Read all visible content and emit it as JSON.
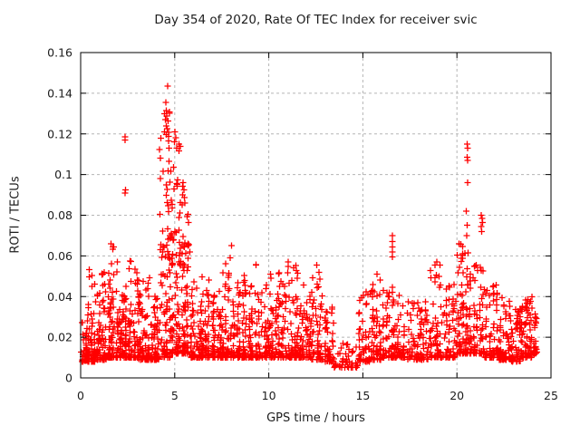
{
  "window": {
    "background": "#ffffff",
    "foreground": "#1c1c1c"
  },
  "chart_data": {
    "type": "scatter",
    "title": "Day 354 of 2020, Rate Of TEC Index for receiver svic",
    "xlabel": "GPS time / hours",
    "ylabel": "ROTI / TECUs",
    "xlim": [
      0,
      25
    ],
    "ylim": [
      0,
      0.16
    ],
    "xticks": [
      0,
      5,
      10,
      15,
      20,
      25
    ],
    "xtick_labels": [
      "0",
      "5",
      "10",
      "15",
      "20",
      "25"
    ],
    "yticks": [
      0,
      0.02,
      0.04,
      0.06,
      0.08,
      0.1,
      0.12,
      0.14,
      0.16
    ],
    "ytick_labels": [
      "0",
      "0.02",
      "0.04",
      "0.06",
      "0.08",
      "0.1",
      "0.12",
      "0.14",
      "0.16"
    ],
    "grid": {
      "shown": true,
      "style": "dashed",
      "color": "#b5b5b5"
    },
    "axis_color": "#000000",
    "legend": "none",
    "series": [
      {
        "name": "ROTI",
        "marker": {
          "glyph": "plus",
          "color": "#ff0000",
          "size": 7
        },
        "seed": 1970,
        "x_extent": [
          0,
          24.3
        ],
        "band_format": [
          "x_start",
          "x_end",
          "n_points",
          "y_min",
          "y_max",
          "decay_exponent"
        ],
        "band": [
          [
            0.0,
            0.35,
            40,
            0.008,
            0.03,
            2.2
          ],
          [
            0.35,
            0.8,
            60,
            0.008,
            0.054,
            2.8
          ],
          [
            0.8,
            1.4,
            80,
            0.009,
            0.052,
            2.6
          ],
          [
            1.4,
            2.0,
            85,
            0.01,
            0.066,
            2.8
          ],
          [
            2.0,
            2.5,
            70,
            0.01,
            0.048,
            2.6
          ],
          [
            2.5,
            3.1,
            75,
            0.01,
            0.058,
            2.7
          ],
          [
            3.1,
            3.7,
            70,
            0.009,
            0.05,
            2.6
          ],
          [
            3.7,
            4.2,
            60,
            0.009,
            0.044,
            2.5
          ],
          [
            4.2,
            4.8,
            55,
            0.01,
            0.06,
            2.0
          ],
          [
            4.2,
            4.8,
            42,
            0.058,
            0.132,
            1.5
          ],
          [
            4.8,
            5.3,
            55,
            0.012,
            0.058,
            2.0
          ],
          [
            4.8,
            5.3,
            38,
            0.055,
            0.12,
            1.6
          ],
          [
            5.3,
            5.8,
            60,
            0.012,
            0.062,
            2.2
          ],
          [
            5.3,
            5.8,
            22,
            0.055,
            0.095,
            1.5
          ],
          [
            5.8,
            6.4,
            65,
            0.01,
            0.048,
            2.5
          ],
          [
            6.4,
            6.9,
            60,
            0.01,
            0.05,
            2.5
          ],
          [
            6.9,
            7.5,
            65,
            0.01,
            0.044,
            2.5
          ],
          [
            7.5,
            8.1,
            70,
            0.01,
            0.062,
            2.8
          ],
          [
            8.1,
            8.7,
            65,
            0.01,
            0.048,
            2.6
          ],
          [
            8.7,
            9.4,
            70,
            0.01,
            0.056,
            2.7
          ],
          [
            9.4,
            10.1,
            70,
            0.01,
            0.05,
            2.6
          ],
          [
            10.1,
            10.8,
            75,
            0.01,
            0.052,
            2.6
          ],
          [
            10.8,
            11.6,
            80,
            0.01,
            0.056,
            2.7
          ],
          [
            11.6,
            12.3,
            70,
            0.01,
            0.046,
            2.6
          ],
          [
            12.3,
            12.9,
            60,
            0.009,
            0.055,
            2.8
          ],
          [
            12.9,
            13.5,
            50,
            0.008,
            0.035,
            2.5
          ],
          [
            13.5,
            14.7,
            45,
            0.005,
            0.017,
            2.0
          ],
          [
            14.7,
            15.4,
            55,
            0.008,
            0.046,
            2.5
          ],
          [
            15.4,
            16.0,
            55,
            0.009,
            0.052,
            2.6
          ],
          [
            16.0,
            16.6,
            55,
            0.01,
            0.046,
            2.5
          ],
          [
            16.6,
            17.3,
            60,
            0.01,
            0.043,
            2.5
          ],
          [
            17.3,
            18.5,
            85,
            0.009,
            0.038,
            2.4
          ],
          [
            18.5,
            19.2,
            60,
            0.01,
            0.056,
            2.8
          ],
          [
            19.2,
            19.9,
            60,
            0.01,
            0.046,
            2.5
          ],
          [
            19.9,
            20.4,
            55,
            0.012,
            0.066,
            2.7
          ],
          [
            20.4,
            20.8,
            45,
            0.012,
            0.062,
            2.2
          ],
          [
            20.8,
            21.5,
            60,
            0.012,
            0.056,
            2.4
          ],
          [
            21.5,
            22.2,
            65,
            0.01,
            0.048,
            2.5
          ],
          [
            22.2,
            22.9,
            70,
            0.009,
            0.04,
            2.4
          ],
          [
            22.9,
            23.4,
            55,
            0.008,
            0.034,
            2.3
          ],
          [
            23.4,
            24.0,
            70,
            0.01,
            0.04,
            2.4
          ],
          [
            24.0,
            24.3,
            25,
            0.012,
            0.032,
            2.0
          ]
        ],
        "outliers": [
          [
            2.36,
            0.1185
          ],
          [
            2.36,
            0.117
          ],
          [
            2.38,
            0.0925
          ],
          [
            2.37,
            0.091
          ],
          [
            4.62,
            0.1435
          ],
          [
            4.53,
            0.1355
          ],
          [
            4.54,
            0.1315
          ],
          [
            4.5,
            0.127
          ],
          [
            4.56,
            0.124
          ],
          [
            4.61,
            0.1225
          ],
          [
            4.45,
            0.121
          ],
          [
            5.02,
            0.121
          ],
          [
            5.06,
            0.118
          ],
          [
            4.98,
            0.116
          ],
          [
            5.1,
            0.113
          ],
          [
            5.45,
            0.096
          ],
          [
            5.5,
            0.0925
          ],
          [
            5.42,
            0.09
          ],
          [
            16.57,
            0.07
          ],
          [
            16.57,
            0.067
          ],
          [
            16.57,
            0.0645
          ],
          [
            16.58,
            0.062
          ],
          [
            16.58,
            0.0595
          ],
          [
            20.55,
            0.115
          ],
          [
            20.57,
            0.113
          ],
          [
            20.55,
            0.1085
          ],
          [
            20.57,
            0.107
          ],
          [
            20.56,
            0.096
          ],
          [
            20.5,
            0.082
          ],
          [
            20.55,
            0.075
          ],
          [
            20.53,
            0.07
          ],
          [
            21.3,
            0.08
          ],
          [
            21.33,
            0.0785
          ],
          [
            21.36,
            0.0765
          ],
          [
            21.28,
            0.0745
          ],
          [
            21.31,
            0.072
          ],
          [
            18.92,
            0.057
          ],
          [
            19.05,
            0.05
          ],
          [
            15.75,
            0.051
          ],
          [
            8.02,
            0.065
          ],
          [
            1.62,
            0.066
          ],
          [
            11.02,
            0.057
          ],
          [
            20.1,
            0.066
          ],
          [
            12.55,
            0.0555
          ],
          [
            9.32,
            0.0555
          ]
        ]
      }
    ]
  }
}
